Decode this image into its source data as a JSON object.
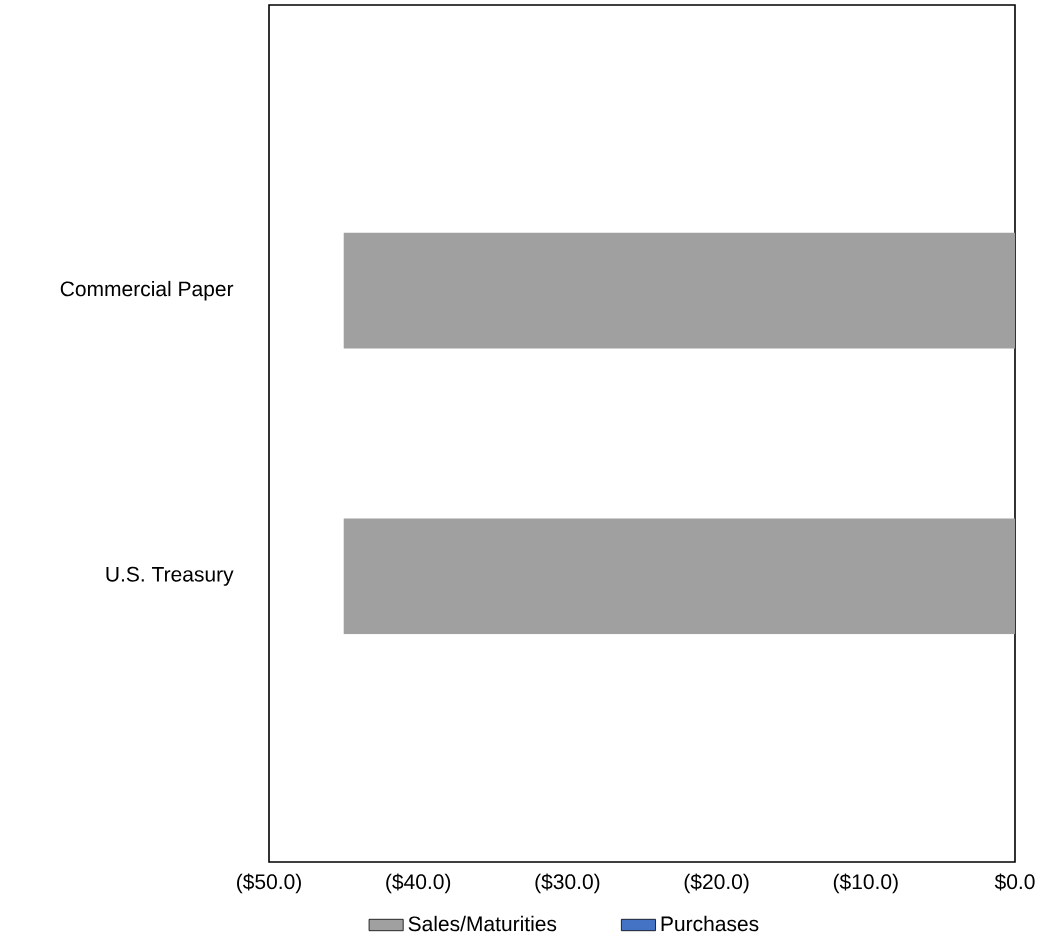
{
  "chart_data": {
    "type": "bar",
    "orientation": "horizontal",
    "categories": [
      "Commercial Paper",
      "U.S. Treasury"
    ],
    "series": [
      {
        "name": "Sales/Maturities",
        "color": "#a0a0a0",
        "values": [
          -45.0,
          -45.0
        ]
      },
      {
        "name": "Purchases",
        "color": "#4472c4",
        "values": [
          null,
          null
        ]
      }
    ],
    "xlim": [
      -50,
      0
    ],
    "xticks": [
      {
        "value": -50,
        "label": "($50.0)"
      },
      {
        "value": -40,
        "label": "($40.0)"
      },
      {
        "value": -30,
        "label": "($30.0)"
      },
      {
        "value": -20,
        "label": "($20.0)"
      },
      {
        "value": -10,
        "label": "($10.0)"
      },
      {
        "value": 0,
        "label": "$0.0"
      }
    ],
    "grid": false,
    "legend": "bottom"
  }
}
